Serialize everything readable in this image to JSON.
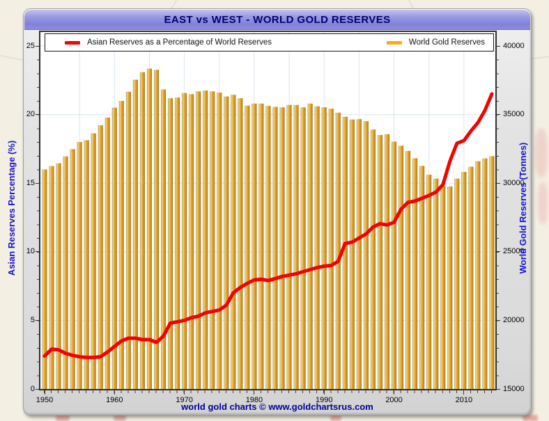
{
  "window": {
    "title": "EAST vs WEST - WORLD GOLD RESERVES",
    "footer": "world gold charts © www.goldchartsrus.com"
  },
  "legend": {
    "items": [
      {
        "label": "Asian Reserves as a Percentage of World Reserves",
        "color": "#ff0000"
      },
      {
        "label": "World Gold Reserves",
        "color": "#ffa719"
      }
    ]
  },
  "colors": {
    "title_text": "#000070",
    "axis_title_text": "#1414cf",
    "footer_text": "#00009a",
    "grid": "#d9e6f2",
    "line": "#f50000",
    "bar_main": "#e8a524",
    "titlebar": "#8c8cde",
    "plot_bg": "#ffffff",
    "panel_bg": "#e0e0e0"
  },
  "chart_data": {
    "type": "bar",
    "title": "EAST vs WEST - WORLD GOLD RESERVES",
    "x_axis": {
      "start_year": 1950,
      "end_year": 2014,
      "label_ticks": [
        1950,
        1960,
        1970,
        1980,
        1990,
        2000,
        2010
      ],
      "grid_start": 1955,
      "grid_step": 5,
      "grid_end": 2010
    },
    "left_axis": {
      "label": "Asian Reserves Percentage (%)",
      "min": 0,
      "max": 25,
      "ticks": [
        0,
        5,
        10,
        15,
        20,
        25
      ]
    },
    "right_axis": {
      "label": "World Gold Reserves (Tonnes)",
      "min": 15000,
      "max": 40000,
      "ticks": [
        15000,
        20000,
        25000,
        30000,
        35000,
        40000
      ]
    },
    "years": [
      1950,
      1951,
      1952,
      1953,
      1954,
      1955,
      1956,
      1957,
      1958,
      1959,
      1960,
      1961,
      1962,
      1963,
      1964,
      1965,
      1966,
      1967,
      1968,
      1969,
      1970,
      1971,
      1972,
      1973,
      1974,
      1975,
      1976,
      1977,
      1978,
      1979,
      1980,
      1981,
      1982,
      1983,
      1984,
      1985,
      1986,
      1987,
      1988,
      1989,
      1990,
      1991,
      1992,
      1993,
      1994,
      1995,
      1996,
      1997,
      1998,
      1999,
      2000,
      2001,
      2002,
      2003,
      2004,
      2005,
      2006,
      2007,
      2008,
      2009,
      2010,
      2011,
      2012,
      2013,
      2014
    ],
    "series": [
      {
        "name": "World Gold Reserves",
        "type": "bar",
        "axis": "right",
        "unit": "tonnes",
        "values": [
          31000,
          31250,
          31450,
          31950,
          32480,
          33000,
          33130,
          33630,
          34220,
          34780,
          35500,
          35990,
          36660,
          37540,
          38090,
          38350,
          38260,
          36830,
          36190,
          36240,
          36570,
          36490,
          36690,
          36750,
          36690,
          36600,
          36320,
          36440,
          36190,
          35650,
          35800,
          35800,
          35630,
          35560,
          35530,
          35700,
          35700,
          35530,
          35800,
          35600,
          35530,
          35430,
          35140,
          34840,
          34640,
          34670,
          34520,
          33910,
          33510,
          33570,
          33030,
          32730,
          32350,
          31820,
          31260,
          30620,
          30330,
          29800,
          29760,
          30330,
          30820,
          31200,
          31600,
          31800,
          31970
        ]
      },
      {
        "name": "Asian Reserves as a Percentage of World Reserves",
        "type": "line",
        "axis": "left",
        "unit": "percent",
        "values": [
          2.4,
          2.9,
          2.85,
          2.6,
          2.45,
          2.35,
          2.3,
          2.3,
          2.35,
          2.7,
          3.1,
          3.5,
          3.7,
          3.7,
          3.6,
          3.6,
          3.4,
          3.85,
          4.8,
          4.9,
          5.0,
          5.2,
          5.3,
          5.55,
          5.65,
          5.75,
          6.1,
          7.0,
          7.4,
          7.7,
          7.95,
          8.0,
          7.9,
          8.05,
          8.2,
          8.3,
          8.4,
          8.55,
          8.7,
          8.85,
          8.95,
          9.0,
          9.3,
          10.6,
          10.7,
          11.0,
          11.3,
          11.8,
          12.05,
          11.95,
          12.15,
          13.1,
          13.6,
          13.7,
          13.9,
          14.1,
          14.35,
          14.9,
          16.6,
          17.9,
          18.1,
          18.8,
          19.4,
          20.3,
          21.5
        ]
      }
    ],
    "grid": true,
    "legend_position": "top-inside"
  }
}
